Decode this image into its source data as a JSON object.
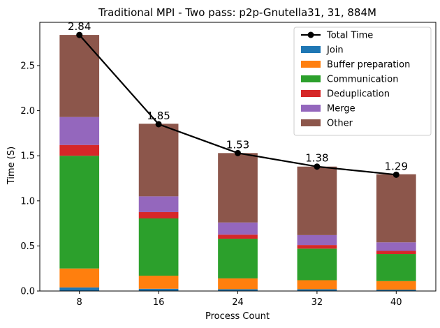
{
  "chart_data": {
    "type": "bar",
    "title": "Traditional MPI - Two pass: p2p-Gnutella31, 31, 884M",
    "xlabel": "Process Count",
    "ylabel": "Time (S)",
    "categories": [
      "8",
      "16",
      "24",
      "32",
      "40"
    ],
    "ylim": [
      0,
      2.98
    ],
    "yticks": [
      "0.0",
      "0.5",
      "1.0",
      "1.5",
      "2.0",
      "2.5"
    ],
    "stacked": true,
    "series": [
      {
        "name": "Join",
        "color": "#1f77b4",
        "values": [
          0.04,
          0.025,
          0.02,
          0.02,
          0.015
        ]
      },
      {
        "name": "Buffer preparation",
        "color": "#ff7f0e",
        "values": [
          0.21,
          0.145,
          0.12,
          0.1,
          0.095
        ]
      },
      {
        "name": "Communication",
        "color": "#2ca02c",
        "values": [
          1.25,
          0.635,
          0.44,
          0.35,
          0.3
        ]
      },
      {
        "name": "Deduplication",
        "color": "#d62728",
        "values": [
          0.12,
          0.07,
          0.045,
          0.04,
          0.035
        ]
      },
      {
        "name": "Merge",
        "color": "#9467bd",
        "values": [
          0.31,
          0.175,
          0.135,
          0.11,
          0.095
        ]
      },
      {
        "name": "Other",
        "color": "#8c564b",
        "values": [
          0.91,
          0.805,
          0.77,
          0.76,
          0.755
        ]
      }
    ],
    "line": {
      "name": "Total Time",
      "color": "#000000",
      "values": [
        2.84,
        1.85,
        1.53,
        1.38,
        1.29
      ],
      "labels": [
        "2.84",
        "1.85",
        "1.53",
        "1.38",
        "1.29"
      ]
    },
    "legend_position": "top-right",
    "grid": false
  }
}
